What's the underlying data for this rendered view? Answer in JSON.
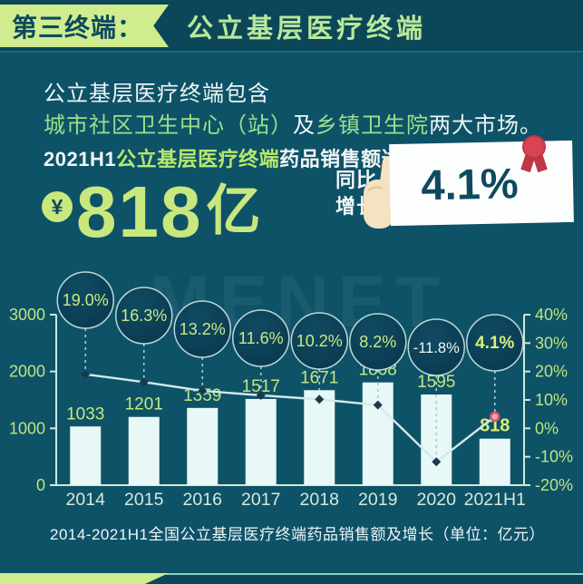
{
  "header": {
    "tag": "第三终端：",
    "title": "公立基层医疗终端"
  },
  "intro": {
    "line1": "公立基层医疗终端包含",
    "line2_green1": "城市社区卫生中心（站）",
    "line2_white1": "及",
    "line2_green2": "乡镇卫生院",
    "line2_white2": "两大市场。"
  },
  "headline": {
    "prefix": "2021H1",
    "highlight": "公立基层医疗终端",
    "suffix": "药品销售额达"
  },
  "big_number": {
    "currency_symbol": "¥",
    "value": "818",
    "unit": "亿"
  },
  "growth_badge": {
    "label_line1": "同比",
    "label_line2": "增长",
    "value": "4.1%"
  },
  "chart_data": {
    "type": "bar+line",
    "watermark": "MENET",
    "categories": [
      "2014",
      "2015",
      "2016",
      "2017",
      "2018",
      "2019",
      "2020",
      "2021H1"
    ],
    "series": [
      {
        "name": "药品销售额（亿元）",
        "type": "bar",
        "values": [
          1033,
          1201,
          1359,
          1517,
          1671,
          1808,
          1595,
          818
        ]
      },
      {
        "name": "同比增长（%）",
        "type": "line",
        "values": [
          19.0,
          16.3,
          13.2,
          11.6,
          10.2,
          8.2,
          -11.8,
          4.1
        ]
      }
    ],
    "bar_value_labels": [
      "1033",
      "1201",
      "1359",
      "1517",
      "1671",
      "1808",
      "1595",
      "818"
    ],
    "growth_labels": [
      "19.0%",
      "16.3%",
      "13.2%",
      "11.6%",
      "10.2%",
      "8.2%",
      "-11.8%",
      "4.1%"
    ],
    "left_axis": {
      "range": [
        0,
        3000
      ],
      "ticks": [
        {
          "label": "3000",
          "value": 3000
        },
        {
          "label": "2000",
          "value": 2000
        },
        {
          "label": "1000",
          "value": 1000
        },
        {
          "label": "0",
          "value": 0
        }
      ]
    },
    "right_axis": {
      "range": [
        -20,
        40
      ],
      "ticks": [
        {
          "label": "40%",
          "value": 40
        },
        {
          "label": "30%",
          "value": 30
        },
        {
          "label": "20%",
          "value": 20
        },
        {
          "label": "10%",
          "value": 10
        },
        {
          "label": "0%",
          "value": 0
        },
        {
          "label": "-10%",
          "value": -10
        },
        {
          "label": "-20%",
          "value": -20
        }
      ]
    },
    "grid": false,
    "legend_position": "none",
    "title": "2014-2021H1全国公立基层医疗终端药品销售额及增长（单位：亿元）"
  },
  "caption": "2014-2021H1全国公立基层医疗终端药品销售额及增长（单位：亿元）",
  "colors": {
    "background": "#0e5268",
    "header_background": "#0c4759",
    "accent_green": "#cfec8e",
    "label_green": "#c3e77f",
    "bar_fill": "#e7f8f6",
    "line_color": "#d2eae8",
    "circle_fill_dark": "#0a3e54",
    "card_text": "#0d4a5e",
    "ribbon_red": "#d84455",
    "highlight_marker_pink": "#d8536a"
  }
}
